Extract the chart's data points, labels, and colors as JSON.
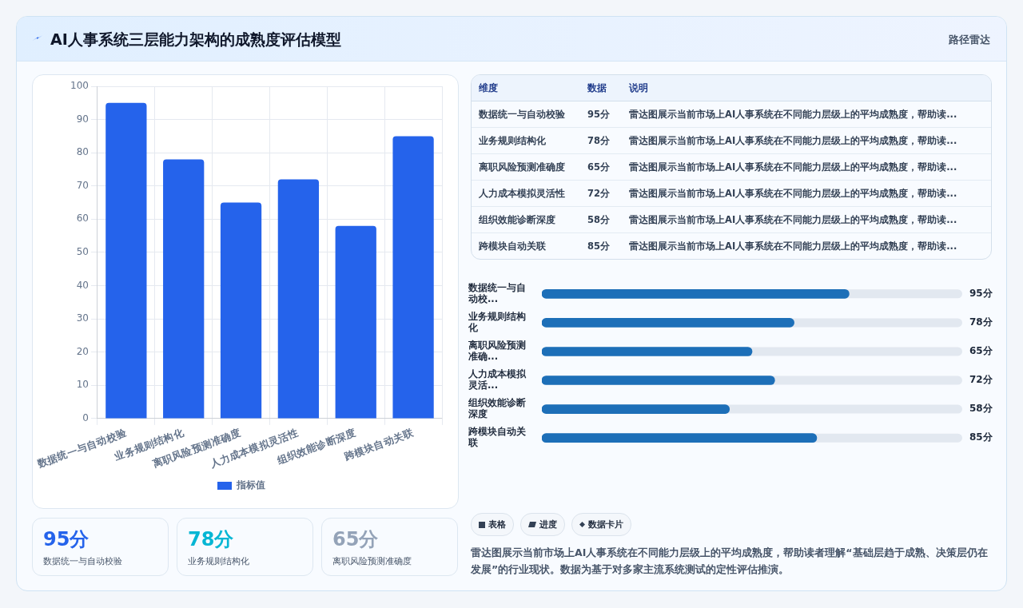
{
  "chart_data": [
    {
      "type": "bar",
      "title": "AI人事系统三层能力架构的成熟度评估模型",
      "categories": [
        "数据统一与自动校验",
        "业务规则结构化",
        "离职风险预测准确度",
        "人力成本模拟灵活性",
        "组织效能诊断深度",
        "跨模块自动关联"
      ],
      "series": [
        {
          "name": "指标值",
          "color": "#2563eb",
          "values": [
            95,
            78,
            65,
            72,
            58,
            85
          ]
        }
      ],
      "ylim": [
        0,
        100
      ],
      "yticks": [
        0,
        10,
        20,
        30,
        40,
        50,
        60,
        70,
        80,
        90,
        100
      ],
      "grid": true,
      "legend": "bottom",
      "annotations": [
        "路径雷达",
        "表格",
        "进度",
        "数据卡片",
        "雷达图展示当前市场上AI人事系统在不同能力层级上的平均成熟度，帮助读者理解“基础层趋于成熟、决策层仍在发展”的行业现状。数据为基于对多家主流系统测试的定性评估推演。"
      ]
    },
    {
      "type": "bar",
      "orientation": "horizontal",
      "categories": [
        "数据统一与自动校...",
        "业务规则结构化",
        "离职风险预测准确...",
        "人力成本模拟灵活...",
        "组织效能诊断深度",
        "跨模块自动关联"
      ],
      "values": [
        95,
        78,
        65,
        72,
        58,
        85
      ],
      "value_labels": [
        "95分",
        "78分",
        "65分",
        "72分",
        "58分",
        "85分"
      ],
      "color": "#1d6fb8",
      "xlim": [
        0,
        130
      ],
      "tick_labels": "y"
    },
    {
      "type": "other",
      "annotations": [
        "维度",
        "数据",
        "说明",
        "数据统一与自动校验",
        "95分",
        "雷达图展示当前市场上AI人事系统在不同能力层级上的平均成熟度，帮助读...",
        "业务规则结构化",
        "78分",
        "雷达图展示当前市场上AI人事系统在不同能力层级上的平均成熟度，帮助读...",
        "离职风险预测准确度",
        "65分",
        "雷达图展示当前市场上AI人事系统在不同能力层级上的平均成熟度，帮助读...",
        "人力成本模拟灵活性",
        "72分",
        "雷达图展示当前市场上AI人事系统在不同能力层级上的平均成熟度，帮助读...",
        "组织效能诊断深度",
        "58分",
        "雷达图展示当前市场上AI人事系统在不同能力层级上的平均成熟度，帮助读...",
        "跨模块自动关联",
        "85分",
        "雷达图展示当前市场上AI人事系统在不同能力层级上的平均成熟度，帮助读..."
      ]
    },
    {
      "type": "other",
      "annotations": [
        "95分",
        "数据统一与自动校验",
        "78分",
        "业务规则结构化",
        "65分",
        "离职风险预测准确度"
      ]
    }
  ]
}
